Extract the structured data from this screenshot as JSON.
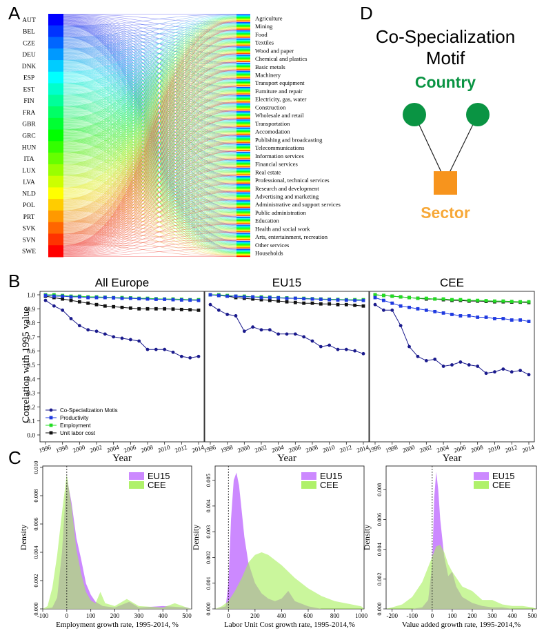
{
  "panel_letters": {
    "a": "A",
    "b": "B",
    "c": "C",
    "d": "D"
  },
  "panel_a": {
    "countries": [
      "AUT",
      "BEL",
      "CZE",
      "DEU",
      "DNK",
      "ESP",
      "EST",
      "FIN",
      "FRA",
      "GBR",
      "GRC",
      "HUN",
      "ITA",
      "LUX",
      "LVA",
      "NLD",
      "POL",
      "PRT",
      "SVK",
      "SVN",
      "SWE"
    ],
    "sectors": [
      "Agriculture",
      "Mining",
      "Food",
      "Textiles",
      "Wood and paper",
      "Chemical and plastics",
      "Basic metals",
      "Machinery",
      "Transport equipment",
      "Furniture and repair",
      "Electricity, gas, water",
      "Construction",
      "Wholesale and retail",
      "Transportation",
      "Accomodation",
      "Publishing and broadcasting",
      "Telecommunications",
      "Information services",
      "Financial services",
      "Real estate",
      "Professional, technical services",
      "Research and development",
      "Advertising and marketing",
      "Administrative and support services",
      "Public administration",
      "Education",
      "Health and social work",
      "Arts, entertainment, recreation",
      "Other services",
      "Households"
    ]
  },
  "panel_d": {
    "title_line1": "Co-Specialization",
    "title_line2": "Motif",
    "country_label": "Country",
    "sector_label": "Sector",
    "country_color": "#0a9443",
    "sector_color": "#f7941d"
  },
  "chart_data": [
    {
      "type": "line",
      "title": "All Europe",
      "xlabel": "Year",
      "ylabel": "Correlation with 1995 value",
      "ylim": [
        0,
        1
      ],
      "x": [
        1996,
        1997,
        1998,
        1999,
        2000,
        2001,
        2002,
        2003,
        2004,
        2005,
        2006,
        2007,
        2008,
        2009,
        2010,
        2011,
        2012,
        2013,
        2014
      ],
      "x_ticks": [
        "1996",
        "1998",
        "2000",
        "2002",
        "2004",
        "2006",
        "2008",
        "2010",
        "2012",
        "2014"
      ],
      "y_ticks": [
        "0.0",
        "0.1",
        "0.2",
        "0.3",
        "0.4",
        "0.5",
        "0.6",
        "0.7",
        "0.8",
        "0.9",
        "1.0"
      ],
      "legend": [
        "Co-Specialization Motis",
        "Productivity",
        "Employment",
        "Unit labor cost"
      ],
      "series": [
        {
          "name": "Co-Specialization Motis",
          "color": "#1a1a8c",
          "marker": "circle",
          "values": [
            0.96,
            0.92,
            0.89,
            0.83,
            0.78,
            0.75,
            0.74,
            0.72,
            0.7,
            0.69,
            0.68,
            0.67,
            0.61,
            0.61,
            0.61,
            0.59,
            0.56,
            0.55,
            0.56
          ]
        },
        {
          "name": "Productivity",
          "color": "#1f3ae0",
          "marker": "square",
          "values": [
            0.995,
            0.99,
            0.99,
            0.985,
            0.985,
            0.98,
            0.98,
            0.98,
            0.978,
            0.975,
            0.975,
            0.972,
            0.97,
            0.968,
            0.968,
            0.965,
            0.963,
            0.962,
            0.96
          ]
        },
        {
          "name": "Employment",
          "color": "#22dd22",
          "marker": "square",
          "values": [
            1.0,
            1.0,
            0.995,
            0.99,
            0.99,
            0.985,
            0.985,
            0.983,
            0.98,
            0.98,
            0.978,
            0.975,
            0.975,
            0.972,
            0.97,
            0.97,
            0.968,
            0.965,
            0.965
          ]
        },
        {
          "name": "Unit labor cost",
          "color": "#111111",
          "marker": "square",
          "values": [
            0.99,
            0.98,
            0.97,
            0.96,
            0.95,
            0.94,
            0.93,
            0.92,
            0.915,
            0.91,
            0.905,
            0.9,
            0.9,
            0.9,
            0.9,
            0.898,
            0.895,
            0.893,
            0.89
          ]
        }
      ]
    },
    {
      "type": "line",
      "title": "EU15",
      "xlabel": "Year",
      "ylim": [
        0,
        1
      ],
      "x": [
        1996,
        1997,
        1998,
        1999,
        2000,
        2001,
        2002,
        2003,
        2004,
        2005,
        2006,
        2007,
        2008,
        2009,
        2010,
        2011,
        2012,
        2013,
        2014
      ],
      "x_ticks": [
        "1996",
        "1998",
        "2000",
        "2002",
        "2004",
        "2006",
        "2008",
        "2010",
        "2012",
        "2014"
      ],
      "series": [
        {
          "name": "Co-Specialization Motis",
          "color": "#1a1a8c",
          "marker": "circle",
          "values": [
            0.93,
            0.89,
            0.86,
            0.85,
            0.74,
            0.77,
            0.75,
            0.75,
            0.72,
            0.72,
            0.72,
            0.7,
            0.67,
            0.63,
            0.64,
            0.61,
            0.61,
            0.6,
            0.58
          ]
        },
        {
          "name": "Productivity",
          "color": "#1f3ae0",
          "marker": "square",
          "values": [
            1.0,
            0.995,
            0.99,
            0.99,
            0.985,
            0.985,
            0.98,
            0.98,
            0.978,
            0.975,
            0.975,
            0.972,
            0.97,
            0.968,
            0.965,
            0.963,
            0.962,
            0.96,
            0.96
          ]
        },
        {
          "name": "Employment",
          "color": "#22dd22",
          "marker": "square",
          "values": [
            1.0,
            1.0,
            0.995,
            0.99,
            0.99,
            0.985,
            0.985,
            0.983,
            0.98,
            0.978,
            0.975,
            0.975,
            0.972,
            0.97,
            0.968,
            0.967,
            0.965,
            0.965,
            0.965
          ]
        },
        {
          "name": "Unit labor cost",
          "color": "#111111",
          "marker": "square",
          "values": [
            1.0,
            0.995,
            0.99,
            0.98,
            0.975,
            0.97,
            0.965,
            0.96,
            0.955,
            0.95,
            0.945,
            0.94,
            0.94,
            0.935,
            0.935,
            0.93,
            0.93,
            0.925,
            0.92
          ]
        }
      ]
    },
    {
      "type": "line",
      "title": "CEE",
      "xlabel": "Year",
      "ylim": [
        0,
        1
      ],
      "x": [
        1996,
        1997,
        1998,
        1999,
        2000,
        2001,
        2002,
        2003,
        2004,
        2005,
        2006,
        2007,
        2008,
        2009,
        2010,
        2011,
        2012,
        2013,
        2014
      ],
      "x_ticks": [
        "1996",
        "1998",
        "2000",
        "2002",
        "2004",
        "2006",
        "2008",
        "2010",
        "2012",
        "2014"
      ],
      "series": [
        {
          "name": "Co-Specialization Motis",
          "color": "#1a1a8c",
          "marker": "circle",
          "values": [
            0.93,
            0.89,
            0.89,
            0.78,
            0.63,
            0.56,
            0.53,
            0.54,
            0.49,
            0.5,
            0.52,
            0.5,
            0.49,
            0.44,
            0.45,
            0.47,
            0.45,
            0.46,
            0.43
          ]
        },
        {
          "name": "Productivity",
          "color": "#1f3ae0",
          "marker": "square",
          "values": [
            0.98,
            0.96,
            0.94,
            0.92,
            0.91,
            0.9,
            0.89,
            0.88,
            0.87,
            0.86,
            0.85,
            0.85,
            0.84,
            0.84,
            0.83,
            0.83,
            0.82,
            0.82,
            0.81
          ]
        },
        {
          "name": "Employment",
          "color": "#22dd22",
          "marker": "square",
          "values": [
            1.0,
            0.995,
            0.99,
            0.985,
            0.98,
            0.975,
            0.975,
            0.97,
            0.97,
            0.965,
            0.965,
            0.96,
            0.96,
            0.958,
            0.955,
            0.955,
            0.952,
            0.95,
            0.95
          ]
        },
        {
          "name": "Unit labor cost",
          "color": "#111111",
          "marker": "square",
          "values": [
            1.0,
            0.995,
            0.99,
            0.985,
            0.98,
            0.975,
            0.97,
            0.97,
            0.965,
            0.96,
            0.96,
            0.955,
            0.955,
            0.953,
            0.95,
            0.95,
            0.948,
            0.947,
            0.945
          ]
        }
      ]
    },
    {
      "type": "area",
      "xlabel": "Employment growth rate, 1995-2014, %",
      "ylabel": "Density",
      "xlim": [
        -100,
        520
      ],
      "ylim": [
        0,
        0.01
      ],
      "x_ticks": [
        "-100",
        "0",
        "100",
        "200",
        "300",
        "400",
        "500"
      ],
      "y_ticks": [
        "0.000",
        "0.002",
        "0.004",
        "0.006",
        "0.008",
        "0.010"
      ],
      "legend": [
        "EU15",
        "CEE"
      ],
      "series": [
        {
          "name": "EU15",
          "color": "#c77cff",
          "x": [
            -100,
            -60,
            -40,
            -20,
            0,
            20,
            40,
            60,
            80,
            100,
            120,
            150,
            200,
            260,
            300,
            400,
            500,
            520
          ],
          "values": [
            0,
            0.0001,
            0.0008,
            0.004,
            0.0093,
            0.0075,
            0.005,
            0.0035,
            0.0018,
            0.001,
            0.0005,
            0.0002,
            0.0001,
            0.0005,
            0.0001,
            0.0002,
            0.0001,
            0
          ]
        },
        {
          "name": "CEE",
          "color": "#a6f05a",
          "x": [
            -100,
            -80,
            -60,
            -40,
            -20,
            0,
            20,
            40,
            60,
            80,
            100,
            120,
            140,
            160,
            200,
            250,
            300,
            400,
            450,
            500,
            520
          ],
          "values": [
            0,
            0.0002,
            0.0015,
            0.0038,
            0.0068,
            0.0095,
            0.0072,
            0.0042,
            0.0025,
            0.0012,
            0.0006,
            0.0004,
            0.0012,
            0.0004,
            0.0002,
            0.0007,
            0.0002,
            0.0001,
            0.0004,
            0.0001,
            0
          ]
        }
      ]
    },
    {
      "type": "area",
      "xlabel": "Labor Unit Cost growth rate, 1995-2014,%",
      "ylabel": "Density",
      "xlim": [
        -100,
        1020
      ],
      "ylim": [
        0,
        0.0055
      ],
      "x_ticks": [
        "0",
        "200",
        "400",
        "600",
        "800",
        "1000"
      ],
      "y_ticks": [
        "0.000",
        "0.001",
        "0.002",
        "0.003",
        "0.004",
        "0.005"
      ],
      "legend": [
        "EU15",
        "CEE"
      ],
      "series": [
        {
          "name": "EU15",
          "color": "#c77cff",
          "x": [
            -100,
            -20,
            0,
            20,
            40,
            60,
            80,
            100,
            120,
            150,
            200,
            250,
            300,
            350,
            400,
            450,
            500,
            600,
            700,
            1020
          ],
          "values": [
            0,
            0.0001,
            0.001,
            0.0035,
            0.005,
            0.0053,
            0.0048,
            0.0038,
            0.0028,
            0.0018,
            0.001,
            0.0006,
            0.0004,
            0.0003,
            0.0004,
            0.0007,
            0.0003,
            0.0001,
            0,
            0
          ]
        },
        {
          "name": "CEE",
          "color": "#a6f05a",
          "x": [
            -100,
            -50,
            0,
            50,
            100,
            150,
            200,
            250,
            300,
            350,
            400,
            500,
            600,
            700,
            800,
            900,
            1000,
            1020
          ],
          "values": [
            0,
            0.0001,
            0.0003,
            0.0007,
            0.0012,
            0.0018,
            0.0021,
            0.0022,
            0.0021,
            0.0019,
            0.0017,
            0.0012,
            0.0008,
            0.0005,
            0.0003,
            0.0002,
            0.0001,
            0
          ]
        }
      ]
    },
    {
      "type": "area",
      "xlabel": "Value added growth rate, 1995-2014,%",
      "ylabel": "Density",
      "xlim": [
        -230,
        520
      ],
      "ylim": [
        0,
        0.0095
      ],
      "x_ticks": [
        "-200",
        "-100",
        "0",
        "100",
        "200",
        "300",
        "400",
        "500"
      ],
      "y_ticks": [
        "0.000",
        "0.002",
        "0.004",
        "0.006",
        "0.008"
      ],
      "legend": [
        "EU15",
        "CEE"
      ],
      "series": [
        {
          "name": "EU15",
          "color": "#c77cff",
          "x": [
            -230,
            -100,
            -50,
            -20,
            0,
            10,
            20,
            30,
            40,
            60,
            80,
            100,
            120,
            150,
            200,
            250,
            300,
            350,
            400,
            520
          ],
          "values": [
            0,
            0,
            0.0001,
            0.0006,
            0.003,
            0.0075,
            0.0092,
            0.008,
            0.006,
            0.0035,
            0.0022,
            0.0025,
            0.0015,
            0.0008,
            0.0004,
            0.0002,
            0.0001,
            0.0001,
            0,
            0
          ]
        },
        {
          "name": "CEE",
          "color": "#a6f05a",
          "x": [
            -230,
            -200,
            -150,
            -100,
            -50,
            0,
            20,
            40,
            60,
            80,
            100,
            150,
            200,
            250,
            300,
            350,
            400,
            450,
            500,
            520
          ],
          "values": [
            0,
            0.0001,
            0.0003,
            0.0008,
            0.0018,
            0.0035,
            0.0042,
            0.0043,
            0.0038,
            0.003,
            0.0025,
            0.0015,
            0.0012,
            0.0006,
            0.0006,
            0.0003,
            0.0002,
            0.0002,
            0.0001,
            0
          ]
        }
      ]
    }
  ]
}
